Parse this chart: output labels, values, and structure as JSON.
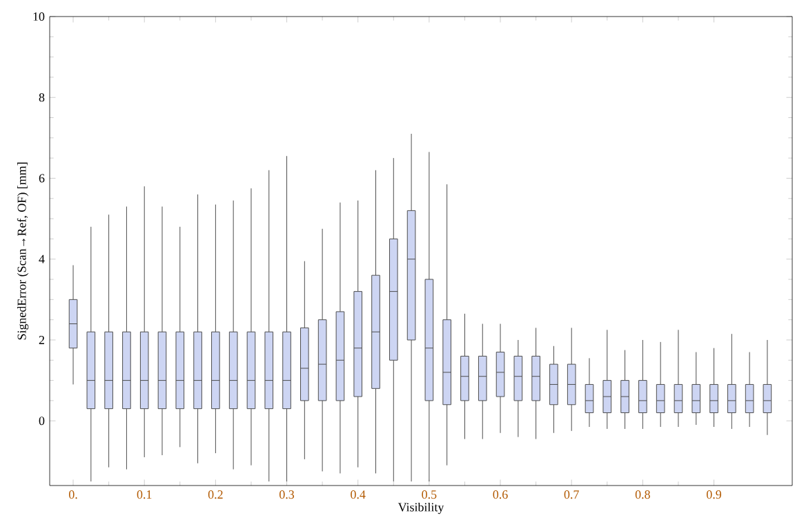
{
  "chart_data": {
    "type": "box",
    "xlabel": "Visibility",
    "ylabel": "SignedError (Scan→Ref, OF) [mm]",
    "color": "#cdd5f3",
    "x": [
      0,
      0.025,
      0.05,
      0.075,
      0.1,
      0.125,
      0.15,
      0.175,
      0.2,
      0.225,
      0.25,
      0.275,
      0.3,
      0.325,
      0.35,
      0.375,
      0.4,
      0.425,
      0.45,
      0.475,
      0.5,
      0.525,
      0.55,
      0.575,
      0.6,
      0.625,
      0.65,
      0.675,
      0.7,
      0.725,
      0.75,
      0.775,
      0.8,
      0.825,
      0.85,
      0.875,
      0.9,
      0.925,
      0.95,
      0.975
    ],
    "boxes": [
      {
        "low": 0.9,
        "q1": 1.8,
        "median": 2.4,
        "q3": 3.0,
        "high": 3.85
      },
      {
        "low": -1.5,
        "q1": 0.3,
        "median": 1.0,
        "q3": 2.2,
        "high": 4.8
      },
      {
        "low": -1.15,
        "q1": 0.3,
        "median": 1.0,
        "q3": 2.2,
        "high": 5.1
      },
      {
        "low": -1.2,
        "q1": 0.3,
        "median": 1.0,
        "q3": 2.2,
        "high": 5.3
      },
      {
        "low": -0.9,
        "q1": 0.3,
        "median": 1.0,
        "q3": 2.2,
        "high": 5.8
      },
      {
        "low": -0.85,
        "q1": 0.3,
        "median": 1.0,
        "q3": 2.2,
        "high": 5.3
      },
      {
        "low": -0.65,
        "q1": 0.3,
        "median": 1.0,
        "q3": 2.2,
        "high": 4.8
      },
      {
        "low": -1.05,
        "q1": 0.3,
        "median": 1.0,
        "q3": 2.2,
        "high": 5.6
      },
      {
        "low": -0.8,
        "q1": 0.3,
        "median": 1.0,
        "q3": 2.2,
        "high": 5.35
      },
      {
        "low": -1.2,
        "q1": 0.3,
        "median": 1.0,
        "q3": 2.2,
        "high": 5.45
      },
      {
        "low": -1.1,
        "q1": 0.3,
        "median": 1.0,
        "q3": 2.2,
        "high": 5.75
      },
      {
        "low": -1.5,
        "q1": 0.3,
        "median": 1.0,
        "q3": 2.2,
        "high": 6.2
      },
      {
        "low": -1.5,
        "q1": 0.3,
        "median": 1.0,
        "q3": 2.2,
        "high": 6.55
      },
      {
        "low": -0.95,
        "q1": 0.5,
        "median": 1.3,
        "q3": 2.3,
        "high": 3.95
      },
      {
        "low": -1.25,
        "q1": 0.5,
        "median": 1.4,
        "q3": 2.5,
        "high": 4.75
      },
      {
        "low": -1.3,
        "q1": 0.5,
        "median": 1.5,
        "q3": 2.7,
        "high": 5.4
      },
      {
        "low": -1.15,
        "q1": 0.6,
        "median": 1.8,
        "q3": 3.2,
        "high": 5.45
      },
      {
        "low": -1.3,
        "q1": 0.8,
        "median": 2.2,
        "q3": 3.6,
        "high": 6.2
      },
      {
        "low": -1.5,
        "q1": 1.5,
        "median": 3.2,
        "q3": 4.5,
        "high": 6.5
      },
      {
        "low": -1.5,
        "q1": 2.0,
        "median": 4.0,
        "q3": 5.2,
        "high": 7.1
      },
      {
        "low": -1.5,
        "q1": 0.5,
        "median": 1.8,
        "q3": 3.5,
        "high": 6.65
      },
      {
        "low": -1.1,
        "q1": 0.4,
        "median": 1.2,
        "q3": 2.5,
        "high": 5.85
      },
      {
        "low": -0.45,
        "q1": 0.5,
        "median": 1.1,
        "q3": 1.6,
        "high": 2.65
      },
      {
        "low": -0.45,
        "q1": 0.5,
        "median": 1.1,
        "q3": 1.6,
        "high": 2.4
      },
      {
        "low": -0.3,
        "q1": 0.6,
        "median": 1.2,
        "q3": 1.7,
        "high": 2.4
      },
      {
        "low": -0.4,
        "q1": 0.5,
        "median": 1.1,
        "q3": 1.6,
        "high": 2.0
      },
      {
        "low": -0.45,
        "q1": 0.5,
        "median": 1.1,
        "q3": 1.6,
        "high": 2.3
      },
      {
        "low": -0.3,
        "q1": 0.4,
        "median": 0.9,
        "q3": 1.4,
        "high": 1.85
      },
      {
        "low": -0.25,
        "q1": 0.4,
        "median": 0.9,
        "q3": 1.4,
        "high": 2.3
      },
      {
        "low": -0.15,
        "q1": 0.2,
        "median": 0.5,
        "q3": 0.9,
        "high": 1.55
      },
      {
        "low": -0.2,
        "q1": 0.2,
        "median": 0.6,
        "q3": 1.0,
        "high": 2.25
      },
      {
        "low": -0.2,
        "q1": 0.2,
        "median": 0.6,
        "q3": 1.0,
        "high": 1.75
      },
      {
        "low": -0.2,
        "q1": 0.2,
        "median": 0.5,
        "q3": 1.0,
        "high": 2.0
      },
      {
        "low": -0.15,
        "q1": 0.2,
        "median": 0.5,
        "q3": 0.9,
        "high": 1.95
      },
      {
        "low": -0.15,
        "q1": 0.2,
        "median": 0.5,
        "q3": 0.9,
        "high": 2.25
      },
      {
        "low": -0.1,
        "q1": 0.2,
        "median": 0.5,
        "q3": 0.9,
        "high": 1.7
      },
      {
        "low": -0.15,
        "q1": 0.2,
        "median": 0.5,
        "q3": 0.9,
        "high": 1.8
      },
      {
        "low": -0.2,
        "q1": 0.2,
        "median": 0.5,
        "q3": 0.9,
        "high": 2.15
      },
      {
        "low": -0.15,
        "q1": 0.2,
        "median": 0.5,
        "q3": 0.9,
        "high": 1.7
      },
      {
        "low": -0.35,
        "q1": 0.2,
        "median": 0.5,
        "q3": 0.9,
        "high": 2.0
      }
    ],
    "xlim": [
      -0.033,
      1.01
    ],
    "ylim": [
      -1.6,
      10
    ],
    "xticks": [
      {
        "value": 0,
        "label": "0."
      },
      0.1,
      0.2,
      0.3,
      0.4,
      0.5,
      0.6,
      0.7,
      0.8,
      0.9
    ],
    "yticks": [
      0,
      2,
      4,
      6,
      8,
      10
    ]
  }
}
